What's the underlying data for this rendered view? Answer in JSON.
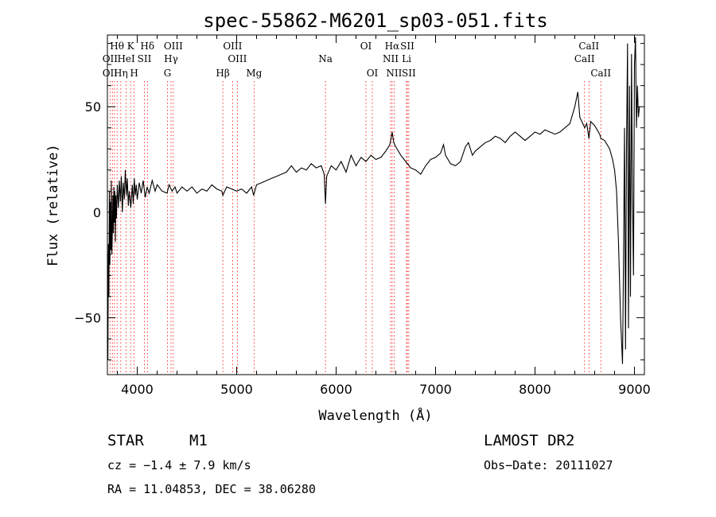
{
  "chart_data": {
    "type": "line",
    "title": "spec-55862-M6201_sp03-051.fits",
    "xlabel": "Wavelength (Å)",
    "ylabel": "Flux (relative)",
    "xlim": [
      3700,
      9100
    ],
    "ylim": [
      -77,
      84
    ],
    "x_ticks": [
      4000,
      5000,
      6000,
      7000,
      8000,
      9000
    ],
    "y_ticks": [
      -50,
      0,
      50
    ],
    "grid": false,
    "series": [
      {
        "values": [
          [
            3700,
            -20
          ],
          [
            3705,
            -70
          ],
          [
            3710,
            -15
          ],
          [
            3715,
            -40
          ],
          [
            3720,
            10
          ],
          [
            3725,
            -25
          ],
          [
            3730,
            5
          ],
          [
            3735,
            -18
          ],
          [
            3740,
            15
          ],
          [
            3745,
            -20
          ],
          [
            3750,
            -8
          ],
          [
            3755,
            8
          ],
          [
            3760,
            -10
          ],
          [
            3765,
            12
          ],
          [
            3770,
            -5
          ],
          [
            3775,
            10
          ],
          [
            3780,
            -14
          ],
          [
            3785,
            8
          ],
          [
            3790,
            -3
          ],
          [
            3800,
            13
          ],
          [
            3810,
            2
          ],
          [
            3820,
            15
          ],
          [
            3830,
            5
          ],
          [
            3840,
            17
          ],
          [
            3850,
            0
          ],
          [
            3860,
            14
          ],
          [
            3870,
            6
          ],
          [
            3880,
            20
          ],
          [
            3890,
            8
          ],
          [
            3900,
            16
          ],
          [
            3910,
            3
          ],
          [
            3920,
            10
          ],
          [
            3935,
            2
          ],
          [
            3950,
            13
          ],
          [
            3960,
            4
          ],
          [
            3970,
            16
          ],
          [
            3980,
            8
          ],
          [
            3990,
            13
          ],
          [
            4000,
            6
          ],
          [
            4020,
            14
          ],
          [
            4040,
            9
          ],
          [
            4060,
            15
          ],
          [
            4080,
            7
          ],
          [
            4100,
            12
          ],
          [
            4120,
            9
          ],
          [
            4150,
            15
          ],
          [
            4180,
            10
          ],
          [
            4200,
            13
          ],
          [
            4250,
            10
          ],
          [
            4300,
            9
          ],
          [
            4320,
            13
          ],
          [
            4350,
            10
          ],
          [
            4380,
            12
          ],
          [
            4400,
            9
          ],
          [
            4450,
            12
          ],
          [
            4500,
            10
          ],
          [
            4550,
            12
          ],
          [
            4600,
            9
          ],
          [
            4650,
            11
          ],
          [
            4700,
            10
          ],
          [
            4750,
            13
          ],
          [
            4800,
            11
          ],
          [
            4850,
            10
          ],
          [
            4861,
            8
          ],
          [
            4900,
            12
          ],
          [
            4950,
            11
          ],
          [
            5000,
            10
          ],
          [
            5050,
            11
          ],
          [
            5100,
            9
          ],
          [
            5150,
            12
          ],
          [
            5170,
            8
          ],
          [
            5200,
            13
          ],
          [
            5250,
            14
          ],
          [
            5300,
            15
          ],
          [
            5350,
            16
          ],
          [
            5400,
            17
          ],
          [
            5450,
            18
          ],
          [
            5500,
            19
          ],
          [
            5550,
            22
          ],
          [
            5600,
            19
          ],
          [
            5650,
            21
          ],
          [
            5700,
            20
          ],
          [
            5750,
            23
          ],
          [
            5800,
            21
          ],
          [
            5850,
            22
          ],
          [
            5880,
            18
          ],
          [
            5893,
            4
          ],
          [
            5905,
            17
          ],
          [
            5950,
            22
          ],
          [
            6000,
            20
          ],
          [
            6050,
            24
          ],
          [
            6100,
            19
          ],
          [
            6150,
            27
          ],
          [
            6200,
            22
          ],
          [
            6250,
            26
          ],
          [
            6300,
            24
          ],
          [
            6350,
            27
          ],
          [
            6400,
            25
          ],
          [
            6450,
            26
          ],
          [
            6500,
            29
          ],
          [
            6540,
            32
          ],
          [
            6563,
            38
          ],
          [
            6580,
            33
          ],
          [
            6600,
            31
          ],
          [
            6650,
            27
          ],
          [
            6700,
            24
          ],
          [
            6750,
            21
          ],
          [
            6800,
            20
          ],
          [
            6850,
            18
          ],
          [
            6900,
            22
          ],
          [
            6950,
            25
          ],
          [
            7000,
            26
          ],
          [
            7050,
            28
          ],
          [
            7080,
            32
          ],
          [
            7100,
            27
          ],
          [
            7150,
            23
          ],
          [
            7200,
            22
          ],
          [
            7250,
            24
          ],
          [
            7300,
            31
          ],
          [
            7330,
            33
          ],
          [
            7370,
            27
          ],
          [
            7400,
            29
          ],
          [
            7450,
            31
          ],
          [
            7500,
            33
          ],
          [
            7550,
            34
          ],
          [
            7600,
            36
          ],
          [
            7650,
            35
          ],
          [
            7700,
            33
          ],
          [
            7750,
            36
          ],
          [
            7800,
            38
          ],
          [
            7850,
            36
          ],
          [
            7900,
            34
          ],
          [
            7950,
            36
          ],
          [
            8000,
            38
          ],
          [
            8050,
            37
          ],
          [
            8100,
            39
          ],
          [
            8150,
            38
          ],
          [
            8200,
            37
          ],
          [
            8250,
            38
          ],
          [
            8300,
            40
          ],
          [
            8350,
            42
          ],
          [
            8400,
            50
          ],
          [
            8430,
            57
          ],
          [
            8450,
            45
          ],
          [
            8500,
            40
          ],
          [
            8520,
            42
          ],
          [
            8542,
            35
          ],
          [
            8560,
            43
          ],
          [
            8600,
            41
          ],
          [
            8650,
            37
          ],
          [
            8662,
            35
          ],
          [
            8700,
            34
          ],
          [
            8750,
            30
          ],
          [
            8780,
            25
          ],
          [
            8800,
            20
          ],
          [
            8820,
            10
          ],
          [
            8840,
            -15
          ],
          [
            8860,
            -50
          ],
          [
            8880,
            -72
          ],
          [
            8890,
            -20
          ],
          [
            8900,
            40
          ],
          [
            8910,
            -65
          ],
          [
            8920,
            30
          ],
          [
            8930,
            80
          ],
          [
            8940,
            -55
          ],
          [
            8950,
            60
          ],
          [
            8960,
            -40
          ],
          [
            8970,
            75
          ],
          [
            8980,
            10
          ],
          [
            8990,
            -30
          ],
          [
            9000,
            70
          ],
          [
            9010,
            83
          ],
          [
            9020,
            40
          ],
          [
            9030,
            60
          ],
          [
            9040,
            45
          ],
          [
            9050,
            50
          ]
        ]
      }
    ],
    "spectral_lines": [
      {
        "label": "Hθ",
        "wavelength": 3797,
        "row": 1
      },
      {
        "label": "K",
        "wavelength": 3934,
        "row": 1
      },
      {
        "label": "Hδ",
        "wavelength": 4102,
        "row": 1
      },
      {
        "label": "OIII",
        "wavelength": 4363,
        "row": 1
      },
      {
        "label": "OIII",
        "wavelength": 4959,
        "row": 1
      },
      {
        "label": "OI",
        "wavelength": 6300,
        "row": 1
      },
      {
        "label": "Hα",
        "wavelength": 6563,
        "row": 1
      },
      {
        "label": "SII",
        "wavelength": 6716,
        "row": 1
      },
      {
        "label": "CaII",
        "wavelength": 8542,
        "row": 1
      },
      {
        "label": "OII",
        "wavelength": 3727,
        "row": 2
      },
      {
        "label": "HeI",
        "wavelength": 3889,
        "row": 2
      },
      {
        "label": "SII",
        "wavelength": 4072,
        "row": 2
      },
      {
        "label": "Hγ",
        "wavelength": 4340,
        "row": 2
      },
      {
        "label": "OIII",
        "wavelength": 5007,
        "row": 2
      },
      {
        "label": "NII",
        "wavelength": 6548,
        "row": 2
      },
      {
        "label": "Li",
        "wavelength": 6708,
        "row": 2
      },
      {
        "label": "CaII",
        "wavelength": 8498,
        "row": 2
      },
      {
        "label": "OII",
        "wavelength": 3727,
        "row": 3
      },
      {
        "label": "Hη",
        "wavelength": 3835,
        "row": 3
      },
      {
        "label": "H",
        "wavelength": 3969,
        "row": 3
      },
      {
        "label": "G",
        "wavelength": 4304,
        "row": 3
      },
      {
        "label": "Hβ",
        "wavelength": 4861,
        "row": 3
      },
      {
        "label": "Mg",
        "wavelength": 5175,
        "row": 3
      },
      {
        "label": "Na",
        "wavelength": 5893,
        "row": 2
      },
      {
        "label": "OI",
        "wavelength": 6364,
        "row": 3
      },
      {
        "label": "NII",
        "wavelength": 6583,
        "row": 3
      },
      {
        "label": "SII",
        "wavelength": 6731,
        "row": 3
      },
      {
        "label": "CaII",
        "wavelength": 8662,
        "row": 3
      }
    ],
    "extra_dotted_lines": [
      3750,
      3771,
      3889,
      4102,
      4340,
      4363,
      4861,
      4959,
      5007,
      6300,
      6364,
      6548,
      6563,
      6583,
      6716,
      6731,
      8498,
      8542,
      8662
    ]
  },
  "info": {
    "object_class": "STAR",
    "subclass": "M1",
    "survey": "LAMOST DR2",
    "velocity": "cz = −1.4 ± 7.9 km/s",
    "obs_date": "Obs−Date: 20111027",
    "coords": "RA =  11.04853, DEC =  38.06280"
  },
  "colors": {
    "axes": "#000000",
    "spectrum": "#000000",
    "line_markers": "#ff0000"
  }
}
